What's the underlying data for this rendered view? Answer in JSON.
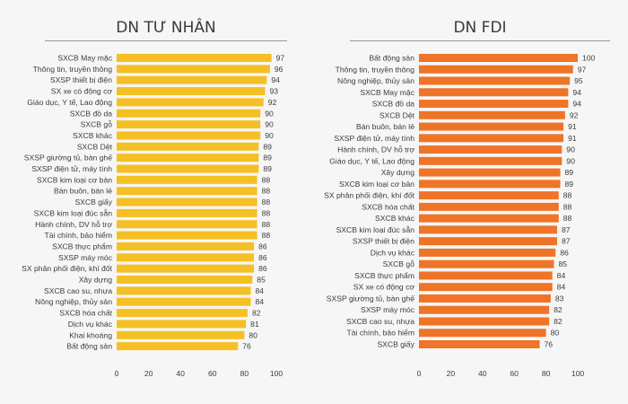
{
  "colors": {
    "private_bar": "#f5c023",
    "fdi_bar": "#ef7427",
    "background": "#f6f6f6",
    "text": "#3c3c3c"
  },
  "chart_data": [
    {
      "type": "bar",
      "orientation": "horizontal",
      "title": "DN TƯ NHÂN",
      "xlim": [
        0,
        100
      ],
      "xticks": [
        0,
        20,
        40,
        60,
        80,
        100
      ],
      "grid": false,
      "categories": [
        "SXCB May mặc",
        "Thông tin, truyền thông",
        "SXSP thiết bị điện",
        "SX xe có động cơ",
        "Giáo dục, Y tế, Lao động",
        "SXCB đồ da",
        "SXCB gỗ",
        "SXCB khác",
        "SXCB Dệt",
        "SXSP giường tủ, bàn ghế",
        "SXSP điện tử, máy tính",
        "SXCB kim loại cơ bản",
        "Bán buôn, bán lẻ",
        "SXCB giấy",
        "SXCB kim loại đúc sẵn",
        "Hành chính, DV hỗ trợ",
        "Tài chính, bảo hiểm",
        "SXCB thực phẩm",
        "SXSP máy móc",
        "SX phân phối điện, khí đốt",
        "Xây dựng",
        "SXCB cao su, nhựa",
        "Nông nghiệp, thủy sản",
        "SXCB hóa chất",
        "Dịch vụ khác",
        "Khai khoáng",
        "Bất động sản"
      ],
      "values": [
        97,
        96,
        94,
        93,
        92,
        90,
        90,
        90,
        89,
        89,
        89,
        88,
        88,
        88,
        88,
        88,
        88,
        86,
        86,
        86,
        85,
        84,
        84,
        82,
        81,
        80,
        76
      ]
    },
    {
      "type": "bar",
      "orientation": "horizontal",
      "title": "DN FDI",
      "xlim": [
        0,
        100
      ],
      "xticks": [
        0,
        20,
        40,
        60,
        80,
        100
      ],
      "grid": false,
      "categories": [
        "Bất động sản",
        "Thông tin, truyền thông",
        "Nông nghiệp, thủy sản",
        "SXCB May mặc",
        "SXCB đồ da",
        "SXCB Dệt",
        "Bán buôn, bán lẻ",
        "SXSP điện tử, máy tính",
        "Hành chính, DV hỗ trợ",
        "Giáo dục, Y tế, Lao động",
        "Xây dựng",
        "SXCB kim loại cơ bản",
        "SX phân phối điện, khí đốt",
        "SXCB hóa chất",
        "SXCB khác",
        "SXCB kim loại đúc sẵn",
        "SXSP thiết bị điện",
        "Dịch vụ khác",
        "SXCB gỗ",
        "SXCB thực phẩm",
        "SX xe có động cơ",
        "SXSP giường tủ, bàn ghế",
        "SXSP máy móc",
        "SXCB cao su, nhựa",
        "Tài chính, bảo hiểm",
        "SXCB giấy"
      ],
      "values": [
        100,
        97,
        95,
        94,
        94,
        92,
        91,
        91,
        90,
        90,
        89,
        89,
        88,
        88,
        88,
        87,
        87,
        86,
        85,
        84,
        84,
        83,
        82,
        82,
        80,
        76
      ]
    }
  ]
}
